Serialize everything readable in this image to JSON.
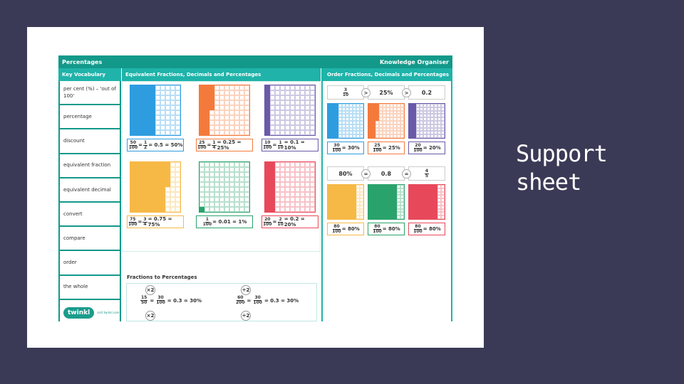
{
  "slide": {
    "side_title_line1": "Support",
    "side_title_line2": "sheet",
    "background": "#3b3a56"
  },
  "organiser": {
    "title": "Percentages",
    "subtitle": "Knowledge Organiser",
    "headers": {
      "vocab": "Key Vocabulary",
      "equiv": "Equivalent Fractions, Decimals and Percentages",
      "order": "Order Fractions, Decimals and Percentages"
    },
    "vocabulary": [
      "per cent (%) – 'out of 100'",
      "percentage",
      "discount",
      "equivalent fraction",
      "equivalent decimal",
      "convert",
      "compare",
      "order",
      "the whole"
    ],
    "logo": {
      "text": "twinkl",
      "url": "visit twinkl.com"
    },
    "equivalents": [
      {
        "color": "#2e9de0",
        "shaded": 50,
        "num": "50",
        "den": "100",
        "num2": "1",
        "den2": "2",
        "rest": "= 0.5 = 50%"
      },
      {
        "color": "#f47a3c",
        "shaded": 25,
        "num": "25",
        "den": "100",
        "num2": "1",
        "den2": "4",
        "rest": "= 0.25 = 25%"
      },
      {
        "color": "#6a5aa8",
        "shaded": 10,
        "num": "10",
        "den": "100",
        "num2": "1",
        "den2": "10",
        "rest": "= 0.1 = 10%"
      },
      {
        "color": "#f7b946",
        "shaded": 75,
        "num": "75",
        "den": "100",
        "num2": "3",
        "den2": "4",
        "rest": "= 0.75 = 75%"
      },
      {
        "color": "#2aa36b",
        "shaded": 1,
        "num": "1",
        "den": "100",
        "num2": "",
        "den2": "",
        "rest": "= 0.01 = 1%"
      },
      {
        "color": "#e8495a",
        "shaded": 20,
        "num": "20",
        "den": "100",
        "num2": "2",
        "den2": "10",
        "rest": "= 0.2 = 20%"
      }
    ],
    "order_row1": {
      "items": [
        "3/10",
        "25%",
        "0.2"
      ],
      "symbols": [
        ">",
        ">"
      ],
      "grids": [
        {
          "color": "#2e9de0",
          "shaded": 30,
          "num": "30",
          "den": "100",
          "rest": "= 30%"
        },
        {
          "color": "#f47a3c",
          "shaded": 25,
          "num": "25",
          "den": "100",
          "rest": "= 25%"
        },
        {
          "color": "#6a5aa8",
          "shaded": 20,
          "num": "20",
          "den": "100",
          "rest": "= 20%"
        }
      ]
    },
    "order_row2": {
      "items": [
        "80%",
        "0.8",
        "4/5"
      ],
      "symbols": [
        "=",
        "="
      ],
      "grids": [
        {
          "color": "#f7b946",
          "shaded": 80,
          "num": "80",
          "den": "100",
          "rest": "= 80%"
        },
        {
          "color": "#2aa36b",
          "shaded": 80,
          "num": "80",
          "den": "100",
          "rest": "= 80%"
        },
        {
          "color": "#e8495a",
          "shaded": 80,
          "num": "80",
          "den": "100",
          "rest": "= 80%"
        }
      ]
    },
    "fractions_to_percentages": {
      "title": "Fractions to Percentages",
      "example1": {
        "op": "×2",
        "num": "15",
        "den": "50",
        "num2": "30",
        "den2": "100",
        "rest": "= 0.3 = 30%"
      },
      "example2": {
        "op": "÷2",
        "num": "60",
        "den": "200",
        "num2": "30",
        "den2": "100",
        "rest": "= 0.3 = 30%"
      }
    }
  }
}
